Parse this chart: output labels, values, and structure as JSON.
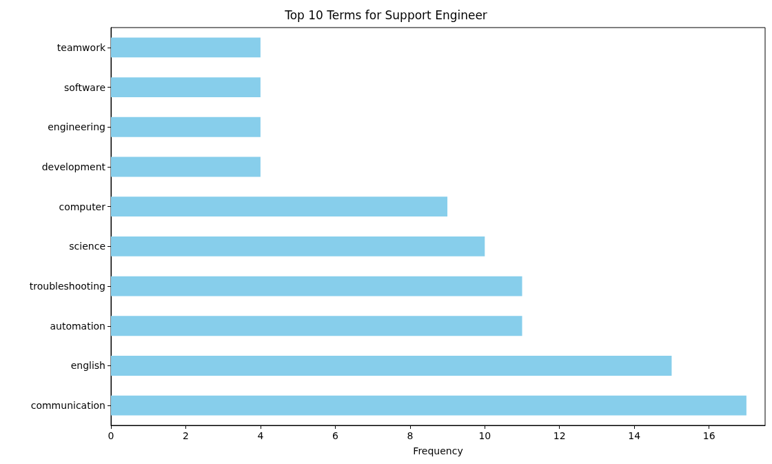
{
  "chart_data": {
    "type": "bar",
    "orientation": "horizontal",
    "title": "Top 10 Terms for Support Engineer",
    "xlabel": "Frequency",
    "categories": [
      "teamwork",
      "software",
      "engineering",
      "development",
      "computer",
      "science",
      "troubleshooting",
      "automation",
      "english",
      "communication"
    ],
    "values": [
      4,
      4,
      4,
      4,
      9,
      10,
      11,
      11,
      15,
      17
    ],
    "color": "#87ceeb",
    "xlim": [
      0,
      17.5
    ],
    "xticks": [
      0,
      2,
      4,
      6,
      8,
      10,
      12,
      14,
      16
    ],
    "grid": false
  }
}
